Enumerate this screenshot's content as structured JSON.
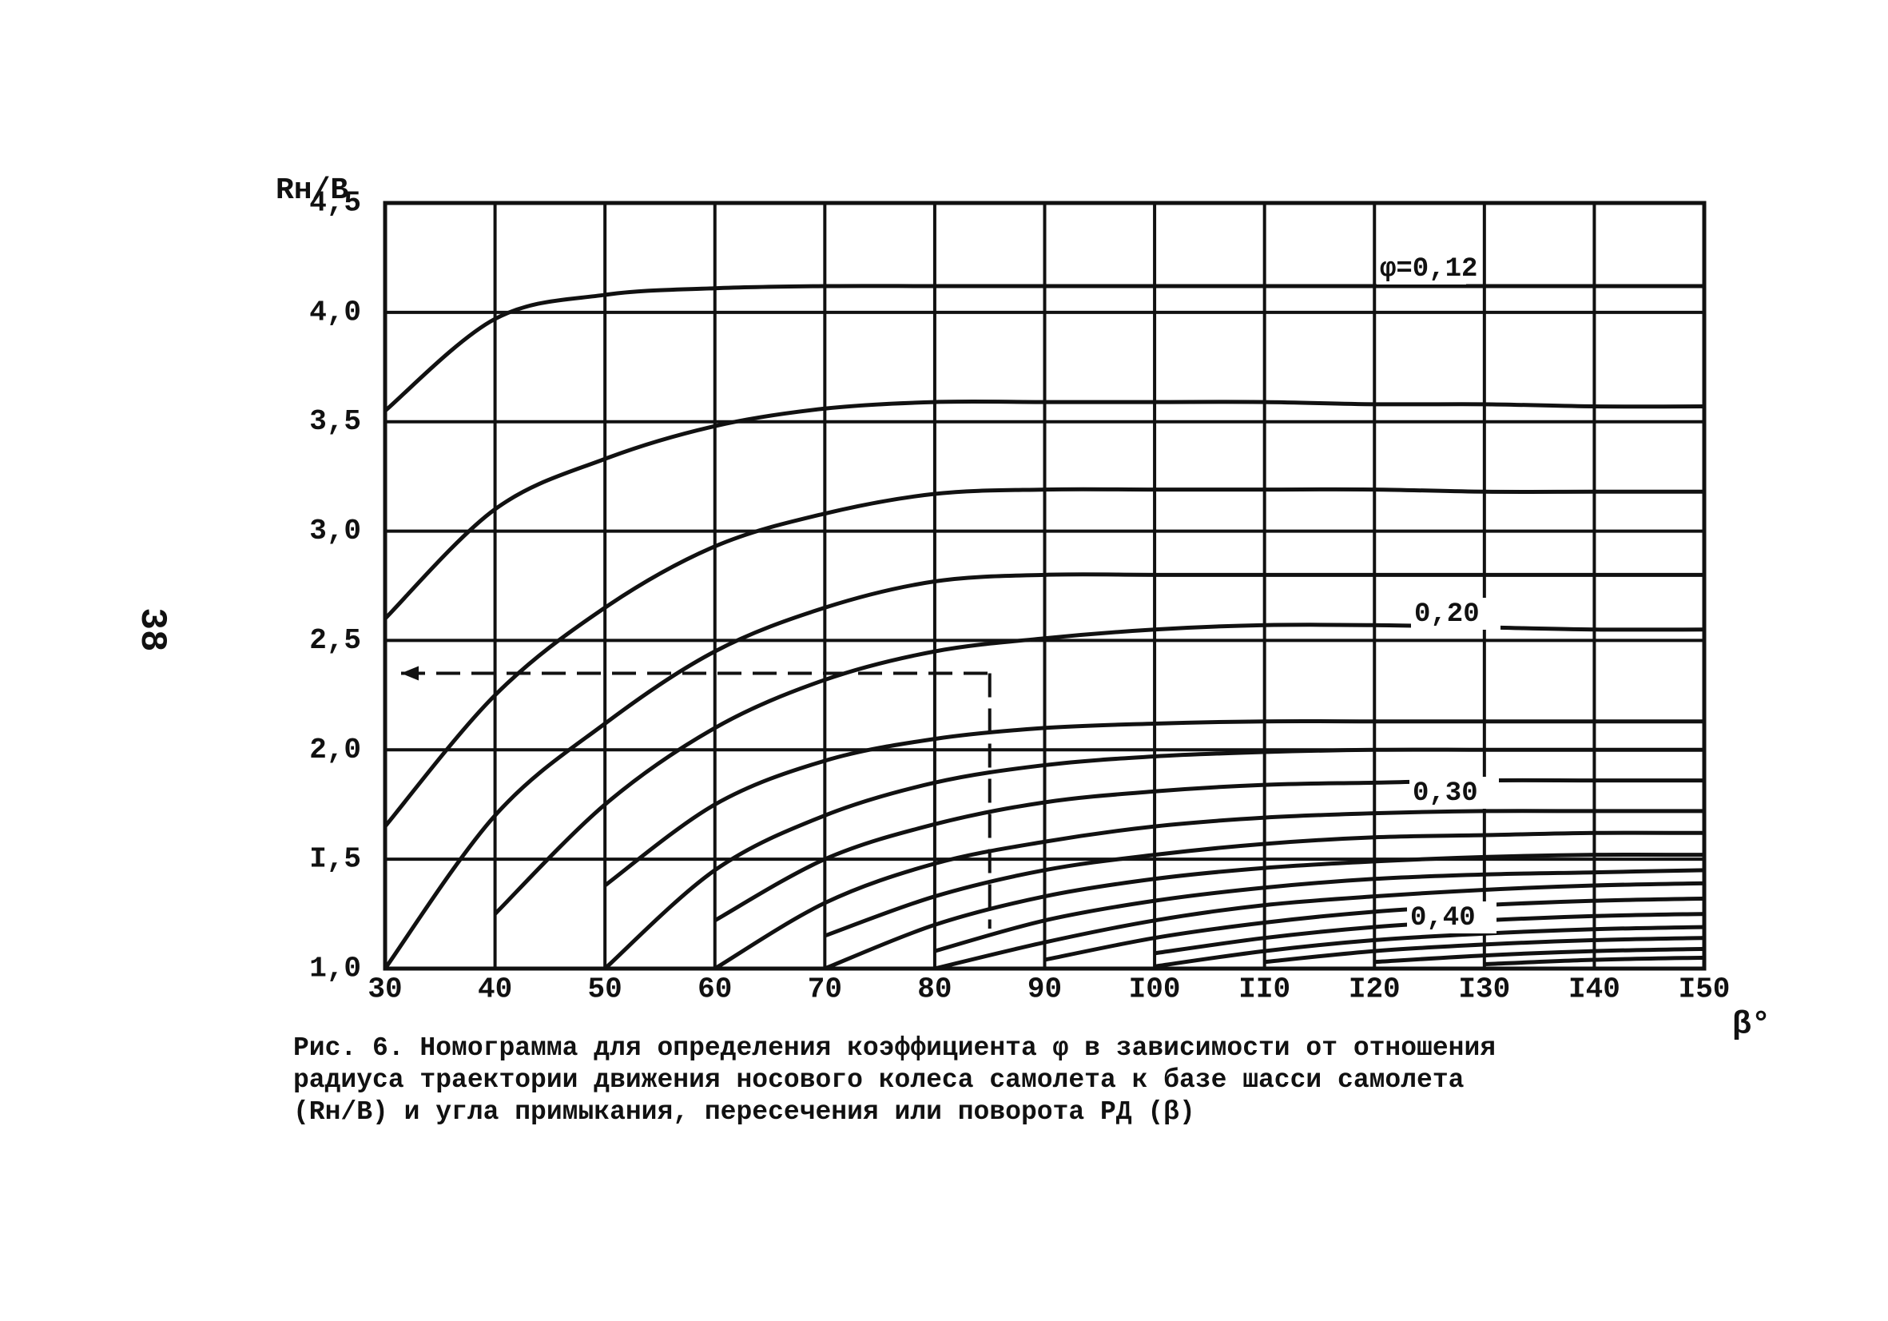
{
  "chart_data": {
    "type": "line",
    "page_number": "38",
    "y_axis_label": "Rн/B",
    "x_axis_label": "β°",
    "annotations": [
      "φ=0,12",
      "0,20",
      "0,30",
      "0,40"
    ],
    "caption": [
      "Рис. 6. Номограмма для определения коэффициента φ  в зависимости от отношения",
      "радиуса траектории движения носового колеса самолета к базе шасси самолета",
      "(Rн/B) и угла примыкания, пересечения или поворота РД (β)"
    ],
    "x": [
      30,
      40,
      50,
      60,
      70,
      80,
      90,
      100,
      110,
      120,
      130,
      140,
      150
    ],
    "xlim": [
      30,
      150
    ],
    "ylim": [
      1.0,
      4.5
    ],
    "xticks": [
      30,
      40,
      50,
      60,
      70,
      80,
      90,
      {
        "value": 100,
        "label": "I00"
      },
      {
        "value": 110,
        "label": "II0"
      },
      {
        "value": 120,
        "label": "I20"
      },
      {
        "value": 130,
        "label": "I30"
      },
      {
        "value": 140,
        "label": "I40"
      },
      {
        "value": 150,
        "label": "I50"
      }
    ],
    "yticks": [
      {
        "value": 1.0,
        "label": "1,0"
      },
      {
        "value": 1.5,
        "label": "I,5"
      },
      {
        "value": 2.0,
        "label": "2,0"
      },
      {
        "value": 2.5,
        "label": "2,5"
      },
      {
        "value": 3.0,
        "label": "3,0"
      },
      {
        "value": 3.5,
        "label": "3,5"
      },
      {
        "value": 4.0,
        "label": "4,0"
      },
      {
        "value": 4.5,
        "label": "4,5"
      }
    ],
    "grid": true,
    "color": "#111111",
    "reading": {
      "x": 85,
      "y": 2.35
    },
    "series": [
      {
        "values": [
          3.55,
          3.97,
          4.08,
          4.11,
          4.12,
          4.12,
          4.12,
          4.12,
          4.12,
          4.12,
          4.12,
          4.12,
          4.12
        ]
      },
      {
        "values": [
          2.6,
          3.1,
          3.33,
          3.48,
          3.56,
          3.59,
          3.59,
          3.59,
          3.59,
          3.58,
          3.58,
          3.57,
          3.57
        ]
      },
      {
        "values": [
          1.65,
          2.25,
          2.65,
          2.93,
          3.08,
          3.17,
          3.19,
          3.19,
          3.19,
          3.19,
          3.18,
          3.18,
          3.18
        ]
      },
      {
        "values": [
          1.0,
          1.7,
          2.12,
          2.45,
          2.65,
          2.77,
          2.8,
          2.8,
          2.8,
          2.8,
          2.8,
          2.8,
          2.8
        ]
      },
      {
        "values": [
          null,
          1.25,
          1.75,
          2.1,
          2.32,
          2.45,
          2.51,
          2.55,
          2.57,
          2.57,
          2.56,
          2.55,
          2.55
        ]
      },
      {
        "values": [
          null,
          null,
          1.38,
          1.75,
          1.95,
          2.05,
          2.1,
          2.12,
          2.13,
          2.13,
          2.13,
          2.13,
          2.13
        ]
      },
      {
        "values": [
          null,
          null,
          1.0,
          1.45,
          1.7,
          1.85,
          1.93,
          1.97,
          1.99,
          2.0,
          2.0,
          2.0,
          2.0
        ]
      },
      {
        "values": [
          null,
          null,
          null,
          1.22,
          1.5,
          1.66,
          1.76,
          1.81,
          1.84,
          1.85,
          1.86,
          1.86,
          1.86
        ]
      },
      {
        "values": [
          null,
          null,
          null,
          1.0,
          1.3,
          1.48,
          1.58,
          1.65,
          1.69,
          1.71,
          1.72,
          1.72,
          1.72
        ]
      },
      {
        "values": [
          null,
          null,
          null,
          null,
          1.15,
          1.33,
          1.45,
          1.52,
          1.57,
          1.6,
          1.61,
          1.62,
          1.62
        ]
      },
      {
        "values": [
          null,
          null,
          null,
          null,
          1.0,
          1.2,
          1.33,
          1.41,
          1.46,
          1.49,
          1.51,
          1.52,
          1.52
        ]
      },
      {
        "values": [
          null,
          null,
          null,
          null,
          null,
          1.08,
          1.22,
          1.31,
          1.37,
          1.41,
          1.43,
          1.44,
          1.45
        ]
      },
      {
        "values": [
          null,
          null,
          null,
          null,
          null,
          1.0,
          1.12,
          1.22,
          1.29,
          1.33,
          1.36,
          1.38,
          1.39
        ]
      },
      {
        "values": [
          null,
          null,
          null,
          null,
          null,
          null,
          1.04,
          1.14,
          1.21,
          1.26,
          1.29,
          1.31,
          1.32
        ]
      },
      {
        "values": [
          null,
          null,
          null,
          null,
          null,
          null,
          null,
          1.07,
          1.14,
          1.19,
          1.22,
          1.24,
          1.25
        ]
      },
      {
        "values": [
          null,
          null,
          null,
          null,
          null,
          null,
          null,
          1.01,
          1.08,
          1.13,
          1.16,
          1.18,
          1.19
        ]
      },
      {
        "values": [
          null,
          null,
          null,
          null,
          null,
          null,
          null,
          null,
          1.03,
          1.08,
          1.11,
          1.13,
          1.14
        ]
      },
      {
        "values": [
          null,
          null,
          null,
          null,
          null,
          null,
          null,
          null,
          null,
          1.03,
          1.06,
          1.08,
          1.09
        ]
      },
      {
        "values": [
          null,
          null,
          null,
          null,
          null,
          null,
          null,
          null,
          null,
          null,
          1.02,
          1.04,
          1.05
        ]
      }
    ]
  }
}
